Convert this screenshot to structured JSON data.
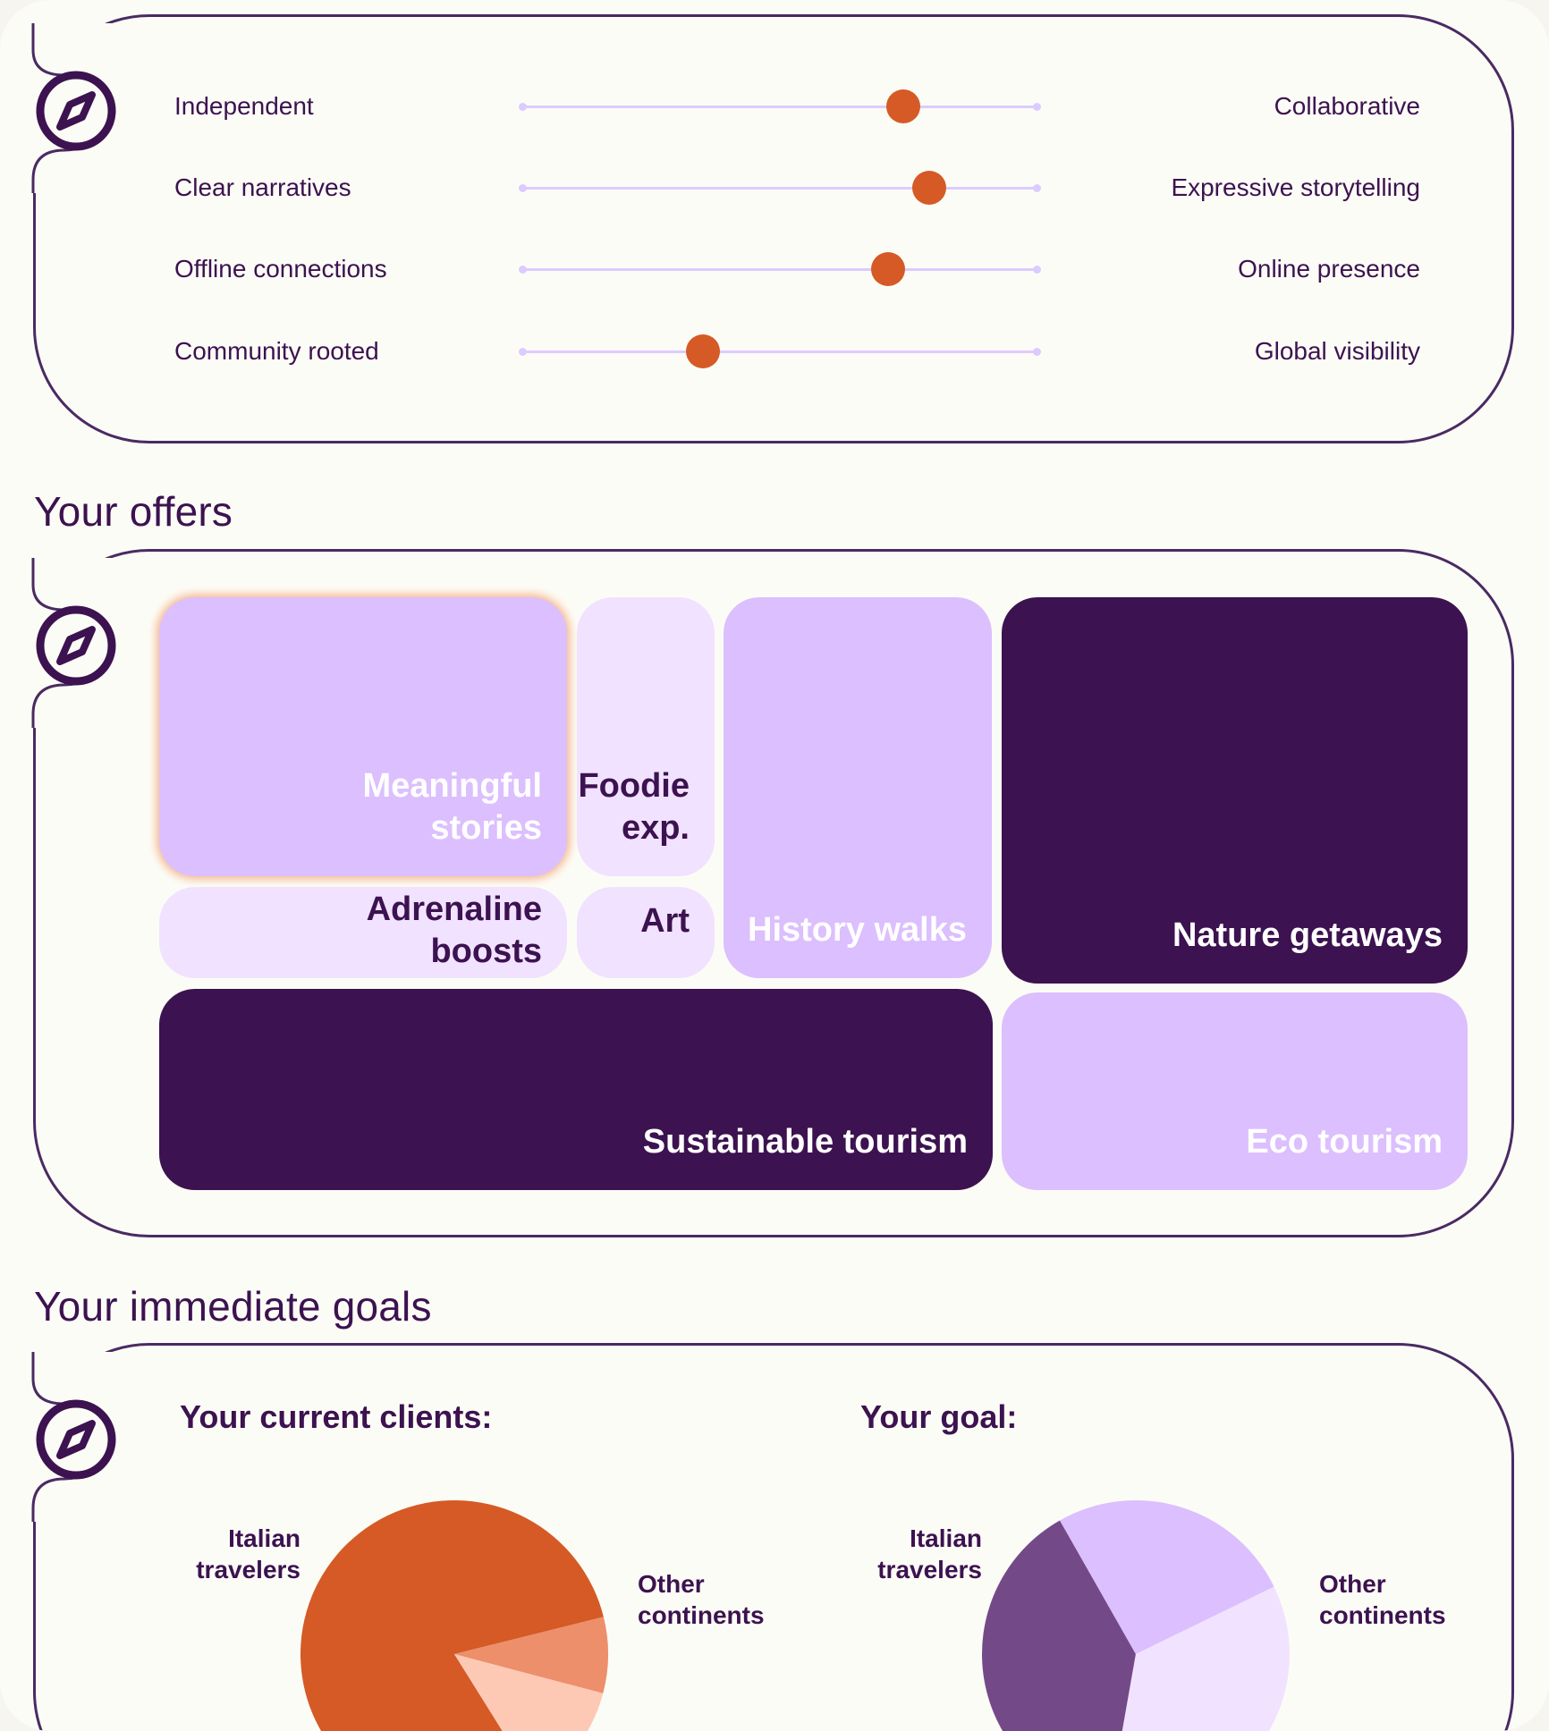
{
  "colors": {
    "page_bg": "#fcfcf6",
    "deep_purple": "#3c1250",
    "light_purple": "#dcbffe",
    "pale_purple": "#f1e2ff",
    "accent_orange": "#d55a25",
    "track": "#dccbff"
  },
  "icons": [
    "compass-icon"
  ],
  "sliders": [
    {
      "left": "Independent",
      "right": "Collaborative",
      "value": 0.74
    },
    {
      "left": "Clear narratives",
      "right": "Expressive storytelling",
      "value": 0.79
    },
    {
      "left": "Offline connections",
      "right": "Online presence",
      "value": 0.71
    },
    {
      "left": "Community rooted",
      "right": "Global visibility",
      "value": 0.35
    }
  ],
  "offers": {
    "title": "Your offers",
    "tiles": [
      {
        "label": "Meaningful\nstories",
        "style": "light",
        "highlighted": true
      },
      {
        "label": "Foodie\nexp.",
        "style": "pale"
      },
      {
        "label": "History walks",
        "style": "light"
      },
      {
        "label": "Nature getaways",
        "style": "dark"
      },
      {
        "label": "Adrenaline\nboosts",
        "style": "pale"
      },
      {
        "label": "Art",
        "style": "pale"
      },
      {
        "label": "Sustainable tourism",
        "style": "dark"
      },
      {
        "label": "Eco tourism",
        "style": "light"
      }
    ]
  },
  "goals": {
    "title": "Your immediate goals",
    "current_heading": "Your current clients:",
    "goal_heading": "Your goal:",
    "italian_label": "Italian\ntravelers",
    "other_label": "Other\ncontinents"
  },
  "chart_data": [
    {
      "type": "pie",
      "title": "Your current clients:",
      "slices": [
        {
          "label": "Italian travelers",
          "value": 80,
          "color": "#d55a25"
        },
        {
          "label": "Other continents",
          "value": 8,
          "color": "#ed8f6a"
        },
        {
          "label": "",
          "value": 12,
          "color": "#fdc9b5"
        }
      ]
    },
    {
      "type": "pie",
      "title": "Your goal:",
      "slices": [
        {
          "label": "Italian travelers",
          "value": 39,
          "color": "#744988"
        },
        {
          "label": "Other continents",
          "value": 26,
          "color": "#dcbffe"
        },
        {
          "label": "",
          "value": 35,
          "color": "#f1e3ff"
        }
      ]
    }
  ]
}
